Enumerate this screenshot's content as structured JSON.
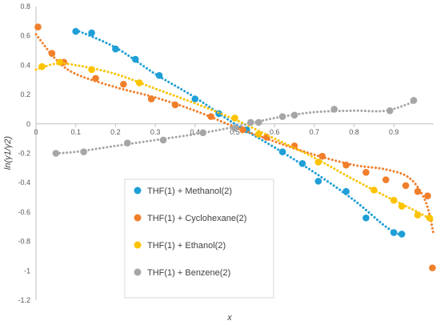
{
  "chart_data": {
    "type": "scatter",
    "xlabel": "x",
    "ylabel": "ln(γ1/γ2)",
    "xlim": [
      0,
      1
    ],
    "ylim": [
      -1.2,
      0.8
    ],
    "x_ticks": [
      "0",
      "0.1",
      "0.2",
      "0.3",
      "0.4",
      "0.5",
      "0.6",
      "0.7",
      "0.8",
      "0.9"
    ],
    "y_ticks": [
      "0.8",
      "0.6",
      "0.4",
      "0.2",
      "0",
      "-0.2",
      "-0.4",
      "-0.6",
      "-0.8",
      "-1",
      "-1.2"
    ],
    "grid": false,
    "legend_position": "center-left",
    "series": [
      {
        "name": "THF(1) + Methanol(2)",
        "color": "#1f9fd6",
        "points": [
          [
            0.1,
            0.63
          ],
          [
            0.14,
            0.62
          ],
          [
            0.2,
            0.51
          ],
          [
            0.25,
            0.44
          ],
          [
            0.31,
            0.33
          ],
          [
            0.4,
            0.17
          ],
          [
            0.46,
            0.07
          ],
          [
            0.53,
            -0.04
          ],
          [
            0.62,
            -0.19
          ],
          [
            0.67,
            -0.27
          ],
          [
            0.71,
            -0.39
          ],
          [
            0.78,
            -0.46
          ],
          [
            0.83,
            -0.64
          ],
          [
            0.9,
            -0.74
          ],
          [
            0.92,
            -0.75
          ]
        ],
        "curve": [
          [
            0.1,
            0.64
          ],
          [
            0.2,
            0.52
          ],
          [
            0.3,
            0.34
          ],
          [
            0.4,
            0.18
          ],
          [
            0.5,
            0.0
          ],
          [
            0.6,
            -0.16
          ],
          [
            0.7,
            -0.33
          ],
          [
            0.8,
            -0.52
          ],
          [
            0.88,
            -0.7
          ],
          [
            0.92,
            -0.76
          ]
        ]
      },
      {
        "name": "THF(1) + Cyclohexane(2)",
        "color": "#f07f2c",
        "points": [
          [
            0.005,
            0.66
          ],
          [
            0.04,
            0.48
          ],
          [
            0.07,
            0.42
          ],
          [
            0.15,
            0.31
          ],
          [
            0.22,
            0.27
          ],
          [
            0.29,
            0.17
          ],
          [
            0.35,
            0.13
          ],
          [
            0.44,
            0.05
          ],
          [
            0.52,
            -0.04
          ],
          [
            0.58,
            -0.09
          ],
          [
            0.65,
            -0.15
          ],
          [
            0.72,
            -0.22
          ],
          [
            0.78,
            -0.28
          ],
          [
            0.83,
            -0.33
          ],
          [
            0.88,
            -0.38
          ],
          [
            0.93,
            -0.42
          ],
          [
            0.96,
            -0.46
          ],
          [
            0.985,
            -0.49
          ],
          [
            0.997,
            -0.98
          ]
        ],
        "curve": [
          [
            0.0,
            0.61
          ],
          [
            0.05,
            0.44
          ],
          [
            0.1,
            0.34
          ],
          [
            0.2,
            0.25
          ],
          [
            0.3,
            0.18
          ],
          [
            0.4,
            0.09
          ],
          [
            0.5,
            -0.02
          ],
          [
            0.6,
            -0.12
          ],
          [
            0.7,
            -0.21
          ],
          [
            0.8,
            -0.28
          ],
          [
            0.88,
            -0.31
          ],
          [
            0.94,
            -0.37
          ],
          [
            0.98,
            -0.53
          ],
          [
            1.0,
            -0.75
          ]
        ]
      },
      {
        "name": "THF(1) + Ethanol(2)",
        "color": "#fcc300",
        "points": [
          [
            0.015,
            0.39
          ],
          [
            0.06,
            0.42
          ],
          [
            0.14,
            0.37
          ],
          [
            0.26,
            0.28
          ],
          [
            0.5,
            0.04
          ],
          [
            0.56,
            -0.07
          ],
          [
            0.71,
            -0.26
          ],
          [
            0.85,
            -0.45
          ],
          [
            0.9,
            -0.52
          ],
          [
            0.92,
            -0.56
          ],
          [
            0.96,
            -0.62
          ],
          [
            0.99,
            -0.64
          ]
        ],
        "curve": [
          [
            0.0,
            0.37
          ],
          [
            0.05,
            0.41
          ],
          [
            0.1,
            0.4
          ],
          [
            0.2,
            0.34
          ],
          [
            0.3,
            0.24
          ],
          [
            0.4,
            0.14
          ],
          [
            0.5,
            0.03
          ],
          [
            0.6,
            -0.1
          ],
          [
            0.7,
            -0.23
          ],
          [
            0.8,
            -0.38
          ],
          [
            0.9,
            -0.52
          ],
          [
            0.96,
            -0.6
          ],
          [
            1.0,
            -0.66
          ]
        ]
      },
      {
        "name": "THF(1) + Benzene(2)",
        "color": "#a6a6a6",
        "points": [
          [
            0.05,
            -0.2
          ],
          [
            0.12,
            -0.19
          ],
          [
            0.23,
            -0.13
          ],
          [
            0.32,
            -0.11
          ],
          [
            0.42,
            -0.06
          ],
          [
            0.5,
            -0.03
          ],
          [
            0.54,
            0.01
          ],
          [
            0.56,
            0.01
          ],
          [
            0.62,
            0.05
          ],
          [
            0.65,
            0.06
          ],
          [
            0.75,
            0.1
          ],
          [
            0.89,
            0.09
          ],
          [
            0.95,
            0.16
          ]
        ],
        "curve": [
          [
            0.05,
            -0.2
          ],
          [
            0.1,
            -0.19
          ],
          [
            0.2,
            -0.15
          ],
          [
            0.3,
            -0.11
          ],
          [
            0.4,
            -0.07
          ],
          [
            0.5,
            -0.02
          ],
          [
            0.6,
            0.04
          ],
          [
            0.7,
            0.08
          ],
          [
            0.8,
            0.09
          ],
          [
            0.88,
            0.09
          ],
          [
            0.95,
            0.15
          ]
        ]
      }
    ]
  }
}
